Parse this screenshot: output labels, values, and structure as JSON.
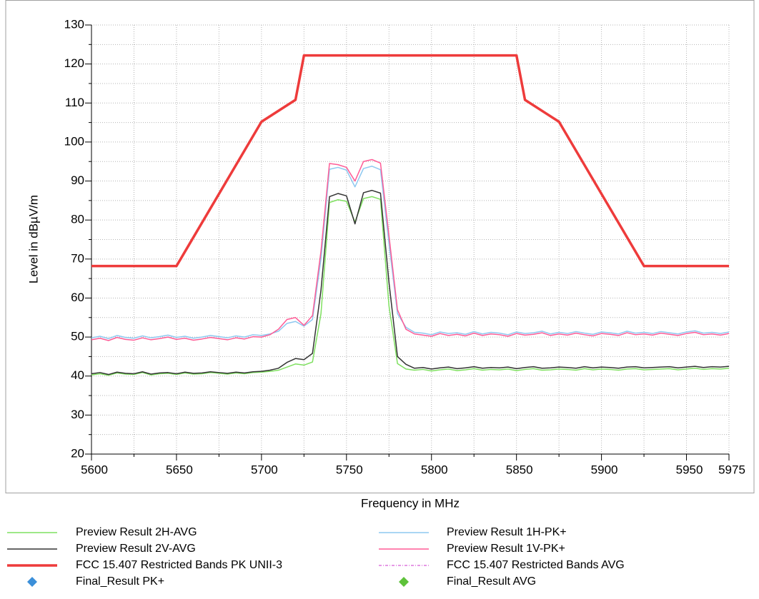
{
  "chart_data": {
    "type": "line",
    "xlabel": "Frequency in MHz",
    "ylabel": "Level in dBµV/m",
    "xlim": [
      5600,
      5975
    ],
    "ylim": [
      20,
      130
    ],
    "xticks": [
      5600,
      5650,
      5700,
      5750,
      5800,
      5850,
      5900,
      5950,
      5975
    ],
    "yticks": [
      20,
      30,
      40,
      50,
      60,
      70,
      80,
      90,
      100,
      110,
      120,
      130
    ],
    "grid": true,
    "legend": "bottom",
    "x": [
      5600,
      5605,
      5610,
      5615,
      5620,
      5625,
      5630,
      5635,
      5640,
      5645,
      5650,
      5655,
      5660,
      5665,
      5670,
      5675,
      5680,
      5685,
      5690,
      5695,
      5700,
      5705,
      5710,
      5715,
      5720,
      5725,
      5730,
      5735,
      5740,
      5745,
      5750,
      5755,
      5760,
      5765,
      5770,
      5775,
      5780,
      5785,
      5790,
      5795,
      5800,
      5805,
      5810,
      5815,
      5820,
      5825,
      5830,
      5835,
      5840,
      5845,
      5850,
      5855,
      5860,
      5865,
      5870,
      5875,
      5880,
      5885,
      5890,
      5895,
      5900,
      5905,
      5910,
      5915,
      5920,
      5925,
      5930,
      5935,
      5940,
      5945,
      5950,
      5955,
      5960,
      5965,
      5970,
      5975
    ],
    "series": [
      {
        "name": "Preview Result 2H-AVG",
        "color": "#7fe060",
        "width": 1.5,
        "values": [
          40.3,
          40.6,
          40.2,
          40.8,
          40.5,
          40.4,
          40.9,
          40.3,
          40.6,
          40.7,
          40.4,
          40.8,
          40.5,
          40.6,
          40.9,
          40.7,
          40.5,
          40.8,
          40.6,
          40.9,
          41.0,
          41.2,
          41.5,
          42.3,
          43.1,
          42.8,
          43.6,
          56,
          84.5,
          85.2,
          84.8,
          79.5,
          85.5,
          86.0,
          85.3,
          58,
          43.2,
          41.8,
          41.5,
          41.7,
          41.3,
          41.6,
          41.8,
          41.4,
          41.6,
          41.9,
          41.5,
          41.7,
          41.6,
          41.8,
          41.4,
          41.7,
          41.9,
          41.5,
          41.6,
          41.8,
          41.7,
          41.5,
          41.9,
          41.6,
          41.8,
          41.7,
          41.5,
          41.8,
          41.9,
          41.6,
          41.7,
          41.8,
          41.9,
          41.6,
          41.8,
          42.0,
          41.7,
          41.9,
          41.8,
          42.0
        ]
      },
      {
        "name": "Preview Result 1H-PK+",
        "color": "#8ec8f0",
        "width": 1.5,
        "values": [
          49.8,
          50.2,
          49.6,
          50.4,
          49.9,
          49.7,
          50.3,
          49.8,
          50.1,
          50.5,
          49.9,
          50.2,
          49.7,
          50.0,
          50.4,
          50.1,
          49.8,
          50.3,
          50.0,
          50.6,
          50.4,
          50.8,
          51.5,
          53.5,
          54.0,
          52.8,
          54.5,
          70,
          93.0,
          93.5,
          92.8,
          88.5,
          93.2,
          93.8,
          92.9,
          74,
          56.0,
          52.5,
          51.2,
          51.0,
          50.6,
          51.3,
          50.9,
          51.1,
          50.7,
          51.4,
          50.8,
          51.2,
          51.0,
          50.6,
          51.3,
          50.9,
          51.1,
          51.5,
          50.8,
          51.2,
          50.9,
          51.4,
          51.0,
          50.7,
          51.3,
          51.1,
          50.8,
          51.5,
          51.0,
          51.2,
          50.9,
          51.4,
          51.1,
          50.8,
          51.3,
          51.6,
          51.0,
          51.2,
          50.9,
          51.3
        ]
      },
      {
        "name": "Preview Result 2V-AVG",
        "color": "#333333",
        "width": 1.5,
        "values": [
          40.6,
          40.9,
          40.4,
          41.0,
          40.7,
          40.6,
          41.1,
          40.5,
          40.8,
          40.9,
          40.6,
          41.0,
          40.7,
          40.8,
          41.1,
          40.9,
          40.7,
          41.0,
          40.8,
          41.1,
          41.2,
          41.5,
          42.0,
          43.5,
          44.5,
          44.2,
          45.8,
          62,
          86.0,
          86.8,
          86.2,
          79.0,
          87.0,
          87.6,
          86.9,
          64,
          45.0,
          43.0,
          42.0,
          42.2,
          41.8,
          42.1,
          42.3,
          41.9,
          42.1,
          42.4,
          42.0,
          42.2,
          42.1,
          42.3,
          41.9,
          42.2,
          42.4,
          42.0,
          42.1,
          42.3,
          42.2,
          42.0,
          42.4,
          42.1,
          42.3,
          42.2,
          42.0,
          42.3,
          42.4,
          42.1,
          42.2,
          42.3,
          42.4,
          42.1,
          42.3,
          42.5,
          42.2,
          42.4,
          42.3,
          42.5
        ]
      },
      {
        "name": "Preview Result 1V-PK+",
        "color": "#ff5c96",
        "width": 1.5,
        "values": [
          49.3,
          49.7,
          49.1,
          49.9,
          49.4,
          49.2,
          49.8,
          49.3,
          49.6,
          50.0,
          49.4,
          49.7,
          49.2,
          49.5,
          49.9,
          49.6,
          49.3,
          49.8,
          49.5,
          50.1,
          50.0,
          50.6,
          52.0,
          54.5,
          55.0,
          53.0,
          55.5,
          72,
          94.5,
          94.2,
          93.5,
          90.0,
          95.0,
          95.5,
          94.6,
          76,
          57.0,
          52.0,
          50.8,
          50.5,
          50.2,
          50.9,
          50.4,
          50.7,
          50.3,
          51.0,
          50.4,
          50.8,
          50.6,
          50.2,
          50.9,
          50.5,
          50.7,
          51.1,
          50.4,
          50.8,
          50.5,
          51.0,
          50.6,
          50.3,
          50.9,
          50.7,
          50.4,
          51.1,
          50.6,
          50.8,
          50.5,
          51.0,
          50.7,
          50.4,
          50.9,
          51.2,
          50.6,
          50.8,
          50.5,
          50.9
        ]
      },
      {
        "name": "FCC 15.407 Restricted Bands PK UNII-3",
        "color": "#ee3b3b",
        "width": 3.5,
        "x": [
          5600,
          5650,
          5700,
          5720,
          5725,
          5850,
          5855,
          5875,
          5925,
          5975
        ],
        "values": [
          68.2,
          68.2,
          105.2,
          110.8,
          122.2,
          122.2,
          110.8,
          105.2,
          68.2,
          68.2
        ]
      }
    ],
    "legend_only": [
      {
        "name": "FCC 15.407 Restricted Bands AVG",
        "color": "#cc33cc",
        "style": "dashdot"
      },
      {
        "name": "Final_Result PK+",
        "color": "#3b8fd9",
        "style": "diamond"
      },
      {
        "name": "Final_Result AVG",
        "color": "#5ec23a",
        "style": "diamond"
      }
    ]
  }
}
